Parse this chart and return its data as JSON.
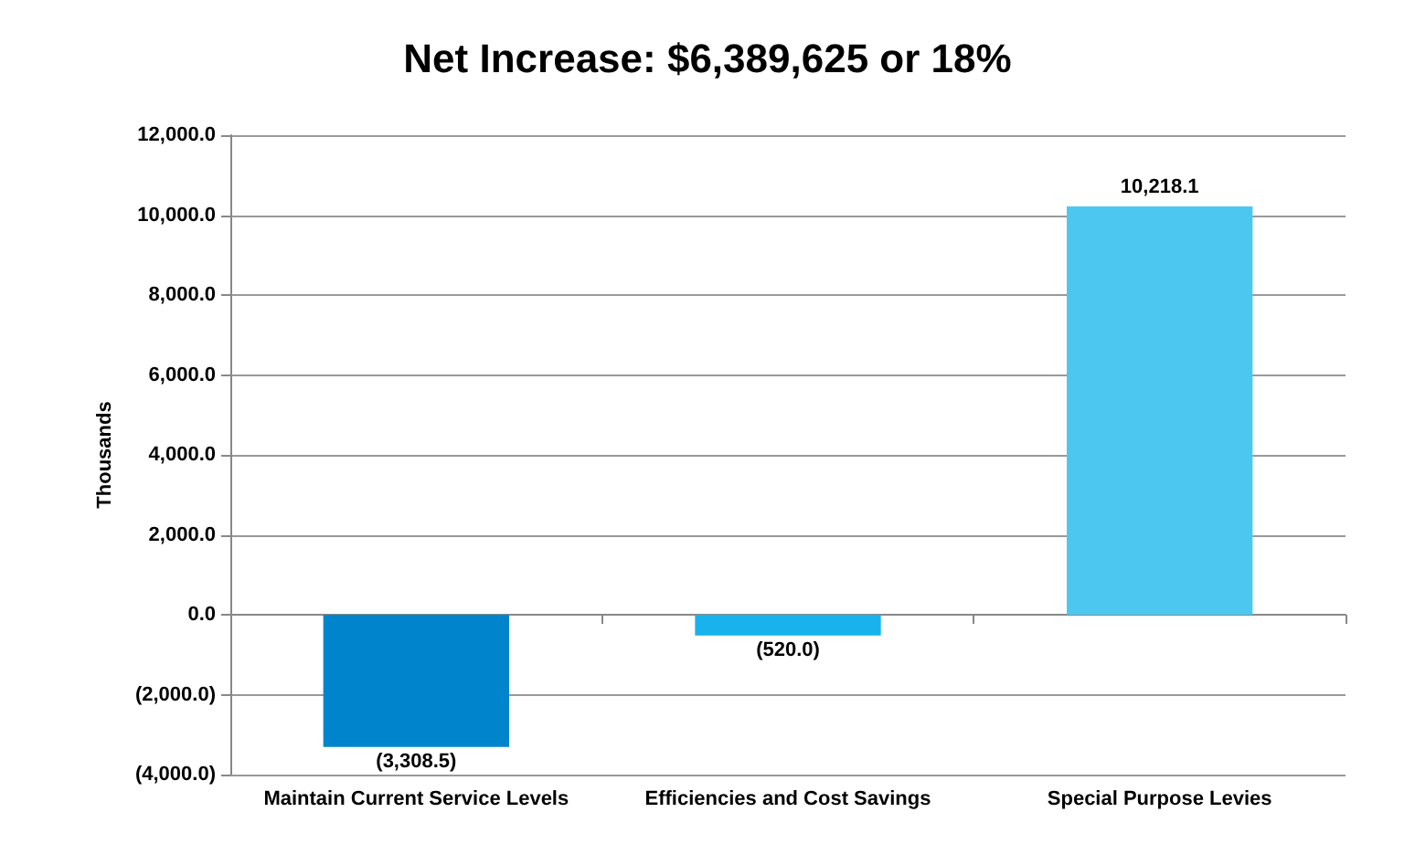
{
  "chart_data": {
    "type": "bar",
    "title": "Net Increase: $6,389,625 or 18%",
    "ylabel": "Thousands",
    "categories": [
      "Maintain Current Service Levels",
      "Efficiencies and Cost Savings",
      "Special Purpose Levies"
    ],
    "values": [
      -3308.5,
      -520.0,
      10218.1
    ],
    "colors": [
      "#0085cc",
      "#18b2ec",
      "#4cc8f0"
    ],
    "value_labels": [
      "(3,308.5)",
      "(520.0)",
      "10,218.1"
    ],
    "ylim": [
      -4000,
      12000
    ],
    "yticks": [
      {
        "value": -4000,
        "label": "(4,000.0)"
      },
      {
        "value": -2000,
        "label": "(2,000.0)"
      },
      {
        "value": 0,
        "label": "0.0"
      },
      {
        "value": 2000,
        "label": "2,000.0"
      },
      {
        "value": 4000,
        "label": "4,000.0"
      },
      {
        "value": 6000,
        "label": "6,000.0"
      },
      {
        "value": 8000,
        "label": "8,000.0"
      },
      {
        "value": 10000,
        "label": "10,000.0"
      },
      {
        "value": 12000,
        "label": "12,000.0"
      }
    ],
    "grid": "y"
  }
}
